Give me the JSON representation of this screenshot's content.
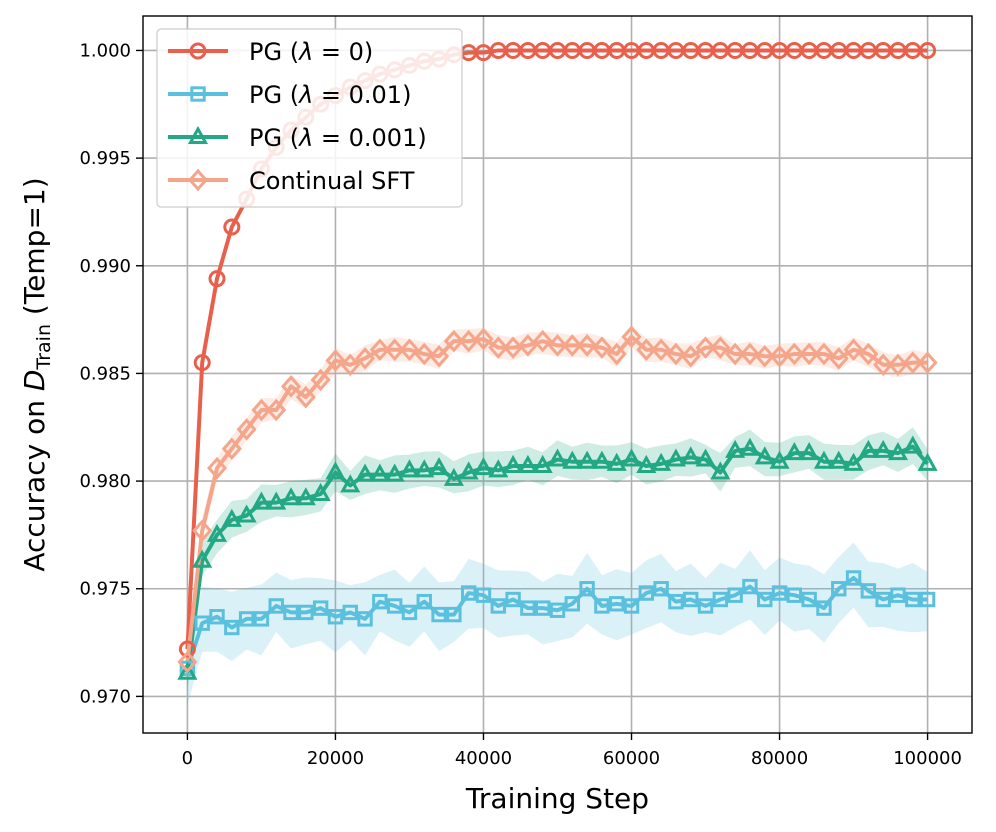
{
  "chart_data": {
    "type": "line",
    "title": "",
    "xlabel": "Training Step",
    "ylabel": {
      "prefix": "Accuracy on ",
      "symbol": "D",
      "subscript": "Train",
      "suffix": " (Temp=1)"
    },
    "xlim": [
      -6000,
      106000
    ],
    "ylim": [
      0.9683,
      1.0016
    ],
    "x_ticks": [
      0,
      20000,
      40000,
      60000,
      80000,
      100000
    ],
    "x_tick_labels": [
      "0",
      "20000",
      "40000",
      "60000",
      "80000",
      "100000"
    ],
    "y_ticks": [
      0.97,
      0.975,
      0.98,
      0.985,
      0.99,
      0.995,
      1.0
    ],
    "y_tick_labels": [
      "0.970",
      "0.975",
      "0.980",
      "0.985",
      "0.990",
      "0.995",
      "1.000"
    ],
    "grid": true,
    "legend_position": "top-left",
    "x": [
      0,
      2000,
      4000,
      6000,
      8000,
      10000,
      12000,
      14000,
      16000,
      18000,
      20000,
      22000,
      24000,
      26000,
      28000,
      30000,
      32000,
      34000,
      36000,
      38000,
      40000,
      42000,
      44000,
      46000,
      48000,
      50000,
      52000,
      54000,
      56000,
      58000,
      60000,
      62000,
      64000,
      66000,
      68000,
      70000,
      72000,
      74000,
      76000,
      78000,
      80000,
      82000,
      84000,
      86000,
      88000,
      90000,
      92000,
      94000,
      96000,
      98000,
      100000
    ],
    "series": [
      {
        "name": "PG (λ = 0)",
        "legend_main": "PG (",
        "legend_symbol": "λ",
        "legend_value": " = 0)",
        "color": "#e8604c",
        "marker": "circle",
        "values": [
          0.9722,
          0.9855,
          0.9894,
          0.9918,
          0.9931,
          0.9945,
          0.9955,
          0.9963,
          0.9969,
          0.9975,
          0.9979,
          0.9983,
          0.9986,
          0.9989,
          0.9991,
          0.9993,
          0.9995,
          0.9996,
          0.9998,
          0.9999,
          0.9999,
          1.0,
          1.0,
          1.0,
          1.0,
          1.0,
          1.0,
          1.0,
          1.0,
          1.0,
          1.0,
          1.0,
          1.0,
          1.0,
          1.0,
          1.0,
          1.0,
          1.0,
          1.0,
          1.0,
          1.0,
          1.0,
          1.0,
          1.0,
          1.0,
          1.0,
          1.0,
          1.0,
          1.0,
          1.0,
          1.0
        ],
        "band": 0.0002
      },
      {
        "name": "PG (λ = 0.01)",
        "legend_main": "PG (",
        "legend_symbol": "λ",
        "legend_value": " = 0.01)",
        "color": "#5bc0de",
        "marker": "square",
        "values": [
          0.9713,
          0.9734,
          0.9737,
          0.9732,
          0.9736,
          0.9736,
          0.9742,
          0.9739,
          0.9739,
          0.9741,
          0.9737,
          0.9739,
          0.9736,
          0.9744,
          0.9742,
          0.9739,
          0.9744,
          0.9738,
          0.9738,
          0.9748,
          0.9747,
          0.9742,
          0.9745,
          0.9741,
          0.9741,
          0.974,
          0.9743,
          0.975,
          0.9742,
          0.9743,
          0.9742,
          0.9748,
          0.975,
          0.9744,
          0.9745,
          0.9742,
          0.9745,
          0.9747,
          0.9751,
          0.9745,
          0.9748,
          0.9747,
          0.9745,
          0.9741,
          0.975,
          0.9755,
          0.9749,
          0.9745,
          0.9747,
          0.9745,
          0.9745
        ],
        "band": 0.0017
      },
      {
        "name": "PG (λ = 0.001)",
        "legend_main": "PG (",
        "legend_symbol": "λ",
        "legend_value": " = 0.001)",
        "color": "#22a884",
        "marker": "triangle",
        "values": [
          0.9711,
          0.9763,
          0.9775,
          0.9782,
          0.9784,
          0.979,
          0.979,
          0.9792,
          0.9792,
          0.9794,
          0.9804,
          0.9798,
          0.9803,
          0.9803,
          0.9803,
          0.9805,
          0.9805,
          0.9806,
          0.9801,
          0.9804,
          0.9806,
          0.9805,
          0.9807,
          0.9807,
          0.9807,
          0.981,
          0.9809,
          0.9809,
          0.9809,
          0.9808,
          0.981,
          0.9807,
          0.9808,
          0.981,
          0.9811,
          0.981,
          0.9804,
          0.9814,
          0.9815,
          0.9811,
          0.9809,
          0.9813,
          0.9813,
          0.9809,
          0.9809,
          0.9808,
          0.9814,
          0.9814,
          0.9813,
          0.9816,
          0.9808
        ],
        "band": 0.0009
      },
      {
        "name": "Continual SFT",
        "legend_main": "Continual SFT",
        "legend_symbol": "",
        "legend_value": "",
        "color": "#f4a58a",
        "marker": "diamond",
        "values": [
          0.9716,
          0.9777,
          0.9806,
          0.9815,
          0.9824,
          0.9833,
          0.9833,
          0.9844,
          0.9839,
          0.9847,
          0.9856,
          0.9854,
          0.9857,
          0.9861,
          0.9861,
          0.9861,
          0.9859,
          0.9858,
          0.9865,
          0.9865,
          0.9866,
          0.9862,
          0.9862,
          0.9863,
          0.9865,
          0.9863,
          0.9863,
          0.9863,
          0.9862,
          0.9859,
          0.9867,
          0.9861,
          0.9861,
          0.9859,
          0.9858,
          0.9862,
          0.9862,
          0.9859,
          0.9859,
          0.9858,
          0.9858,
          0.9859,
          0.9859,
          0.9859,
          0.9857,
          0.9861,
          0.9859,
          0.9854,
          0.9854,
          0.9855,
          0.9855
        ],
        "band": 0.0006
      }
    ]
  }
}
